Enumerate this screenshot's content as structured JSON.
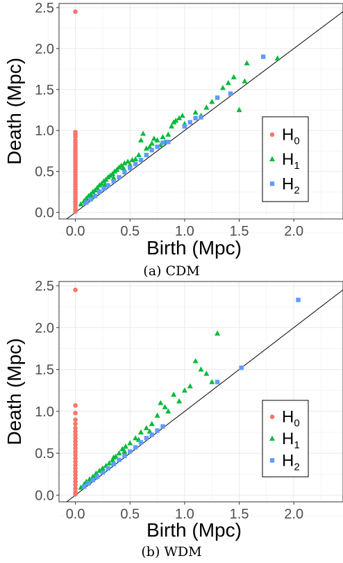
{
  "chart_data": [
    {
      "type": "scatter",
      "caption": "(a) CDM",
      "xlabel": "Birth (Mpc)",
      "ylabel": "Death (Mpc)",
      "xlim": [
        -0.15,
        2.45
      ],
      "ylim": [
        -0.08,
        2.55
      ],
      "xticks": [
        "0.0",
        "0.5",
        "1.0",
        "1.5",
        "2.0"
      ],
      "yticks": [
        "0.0",
        "0.5",
        "1.0",
        "1.5",
        "2.0",
        "2.5"
      ],
      "grid": true,
      "diagonal": true,
      "legend": {
        "placement": "right",
        "entries": [
          {
            "base": "H",
            "sub": "0",
            "color": "#f8766d",
            "shape": "circle"
          },
          {
            "base": "H",
            "sub": "1",
            "color": "#00ba38",
            "shape": "triangle"
          },
          {
            "base": "H",
            "sub": "2",
            "color": "#619cff",
            "shape": "square"
          }
        ]
      },
      "series": [
        {
          "color": "#f8766d",
          "shape": "circle",
          "points": [
            [
              0,
              2.45
            ],
            [
              0,
              0.98
            ],
            [
              0,
              0.95
            ],
            [
              0,
              0.92
            ],
            [
              0,
              0.88
            ],
            [
              0,
              0.85
            ],
            [
              0,
              0.82
            ],
            [
              0,
              0.79
            ],
            [
              0,
              0.76
            ],
            [
              0,
              0.73
            ],
            [
              0,
              0.7
            ],
            [
              0,
              0.67
            ],
            [
              0,
              0.64
            ],
            [
              0,
              0.61
            ],
            [
              0,
              0.58
            ],
            [
              0,
              0.55
            ],
            [
              0,
              0.52
            ],
            [
              0,
              0.49
            ],
            [
              0,
              0.46
            ],
            [
              0,
              0.43
            ],
            [
              0,
              0.4
            ],
            [
              0,
              0.37
            ],
            [
              0,
              0.34
            ],
            [
              0,
              0.31
            ],
            [
              0,
              0.28
            ],
            [
              0,
              0.25
            ],
            [
              0,
              0.22
            ],
            [
              0,
              0.19
            ],
            [
              0,
              0.16
            ],
            [
              0,
              0.13
            ],
            [
              0,
              0.1
            ],
            [
              0,
              0.07
            ],
            [
              0,
              0.04
            ],
            [
              0,
              0.01
            ]
          ]
        },
        {
          "color": "#00ba38",
          "shape": "triangle",
          "points": [
            [
              0.05,
              0.1
            ],
            [
              0.08,
              0.14
            ],
            [
              0.1,
              0.17
            ],
            [
              0.12,
              0.2
            ],
            [
              0.14,
              0.22
            ],
            [
              0.16,
              0.25
            ],
            [
              0.18,
              0.27
            ],
            [
              0.2,
              0.3
            ],
            [
              0.22,
              0.33
            ],
            [
              0.24,
              0.35
            ],
            [
              0.26,
              0.38
            ],
            [
              0.28,
              0.4
            ],
            [
              0.3,
              0.43
            ],
            [
              0.32,
              0.45
            ],
            [
              0.34,
              0.47
            ],
            [
              0.36,
              0.5
            ],
            [
              0.38,
              0.52
            ],
            [
              0.4,
              0.55
            ],
            [
              0.42,
              0.57
            ],
            [
              0.45,
              0.6
            ],
            [
              0.48,
              0.62
            ],
            [
              0.5,
              0.58
            ],
            [
              0.52,
              0.64
            ],
            [
              0.55,
              0.65
            ],
            [
              0.58,
              0.7
            ],
            [
              0.6,
              0.88
            ],
            [
              0.62,
              0.96
            ],
            [
              0.65,
              0.78
            ],
            [
              0.68,
              0.8
            ],
            [
              0.7,
              0.84
            ],
            [
              0.72,
              0.9
            ],
            [
              0.75,
              0.88
            ],
            [
              0.78,
              0.82
            ],
            [
              0.8,
              0.92
            ],
            [
              0.82,
              0.86
            ],
            [
              0.85,
              0.95
            ],
            [
              0.88,
              1.05
            ],
            [
              0.9,
              1.1
            ],
            [
              0.92,
              1.12
            ],
            [
              0.95,
              1.15
            ],
            [
              0.98,
              1.18
            ],
            [
              1.0,
              1.08
            ],
            [
              1.1,
              1.22
            ],
            [
              1.15,
              1.18
            ],
            [
              1.2,
              1.28
            ],
            [
              1.25,
              1.35
            ],
            [
              1.35,
              1.52
            ],
            [
              1.4,
              1.58
            ],
            [
              1.45,
              1.65
            ],
            [
              1.5,
              1.25
            ],
            [
              1.55,
              1.6
            ],
            [
              1.57,
              1.82
            ],
            [
              1.85,
              1.88
            ],
            [
              0.44,
              0.54
            ],
            [
              0.35,
              0.42
            ],
            [
              0.27,
              0.33
            ],
            [
              0.15,
              0.19
            ],
            [
              0.09,
              0.12
            ]
          ]
        },
        {
          "color": "#619cff",
          "shape": "square",
          "points": [
            [
              0.1,
              0.12
            ],
            [
              0.14,
              0.16
            ],
            [
              0.18,
              0.2
            ],
            [
              0.22,
              0.25
            ],
            [
              0.26,
              0.29
            ],
            [
              0.3,
              0.33
            ],
            [
              0.35,
              0.38
            ],
            [
              0.4,
              0.43
            ],
            [
              0.45,
              0.49
            ],
            [
              0.5,
              0.54
            ],
            [
              0.55,
              0.59
            ],
            [
              0.6,
              0.64
            ],
            [
              0.65,
              0.7
            ],
            [
              0.7,
              0.76
            ],
            [
              0.75,
              0.8
            ],
            [
              0.8,
              0.85
            ],
            [
              0.85,
              0.86
            ],
            [
              1.0,
              1.05
            ],
            [
              1.05,
              1.1
            ],
            [
              1.1,
              1.15
            ],
            [
              1.15,
              1.16
            ],
            [
              1.3,
              1.4
            ],
            [
              1.42,
              1.45
            ],
            [
              1.72,
              1.9
            ]
          ]
        }
      ]
    },
    {
      "type": "scatter",
      "caption": "(b) WDM",
      "xlabel": "Birth (Mpc)",
      "ylabel": "Death (Mpc)",
      "xlim": [
        -0.15,
        2.45
      ],
      "ylim": [
        -0.08,
        2.55
      ],
      "xticks": [
        "0.0",
        "0.5",
        "1.0",
        "1.5",
        "2.0"
      ],
      "yticks": [
        "0.0",
        "0.5",
        "1.0",
        "1.5",
        "2.0",
        "2.5"
      ],
      "grid": true,
      "diagonal": true,
      "legend": {
        "placement": "right",
        "entries": [
          {
            "base": "H",
            "sub": "0",
            "color": "#f8766d",
            "shape": "circle"
          },
          {
            "base": "H",
            "sub": "1",
            "color": "#00ba38",
            "shape": "triangle"
          },
          {
            "base": "H",
            "sub": "2",
            "color": "#619cff",
            "shape": "square"
          }
        ]
      },
      "series": [
        {
          "color": "#f8766d",
          "shape": "circle",
          "points": [
            [
              0,
              2.45
            ],
            [
              0,
              1.07
            ],
            [
              0,
              0.98
            ],
            [
              0,
              0.9
            ],
            [
              0,
              0.85
            ],
            [
              0,
              0.8
            ],
            [
              0,
              0.76
            ],
            [
              0,
              0.72
            ],
            [
              0,
              0.68
            ],
            [
              0,
              0.64
            ],
            [
              0,
              0.6
            ],
            [
              0,
              0.56
            ],
            [
              0,
              0.52
            ],
            [
              0,
              0.48
            ],
            [
              0,
              0.44
            ],
            [
              0,
              0.4
            ],
            [
              0,
              0.36
            ],
            [
              0,
              0.32
            ],
            [
              0,
              0.28
            ],
            [
              0,
              0.24
            ],
            [
              0,
              0.2
            ],
            [
              0,
              0.16
            ],
            [
              0,
              0.12
            ],
            [
              0,
              0.08
            ],
            [
              0,
              0.04
            ],
            [
              0,
              0.01
            ]
          ]
        },
        {
          "color": "#00ba38",
          "shape": "triangle",
          "points": [
            [
              0.05,
              0.09
            ],
            [
              0.08,
              0.13
            ],
            [
              0.1,
              0.16
            ],
            [
              0.13,
              0.19
            ],
            [
              0.16,
              0.22
            ],
            [
              0.19,
              0.26
            ],
            [
              0.22,
              0.29
            ],
            [
              0.25,
              0.32
            ],
            [
              0.28,
              0.35
            ],
            [
              0.31,
              0.38
            ],
            [
              0.34,
              0.42
            ],
            [
              0.37,
              0.46
            ],
            [
              0.4,
              0.5
            ],
            [
              0.43,
              0.55
            ],
            [
              0.46,
              0.58
            ],
            [
              0.5,
              0.62
            ],
            [
              0.55,
              0.68
            ],
            [
              0.6,
              0.75
            ],
            [
              0.65,
              0.8
            ],
            [
              0.7,
              0.85
            ],
            [
              0.75,
              0.95
            ],
            [
              0.78,
              1.1
            ],
            [
              0.82,
              1.05
            ],
            [
              0.85,
              1.0
            ],
            [
              0.9,
              1.2
            ],
            [
              0.95,
              1.12
            ],
            [
              1.0,
              1.25
            ],
            [
              1.05,
              1.3
            ],
            [
              1.1,
              1.6
            ],
            [
              1.15,
              1.5
            ],
            [
              1.2,
              1.45
            ],
            [
              1.25,
              1.35
            ],
            [
              1.3,
              1.93
            ],
            [
              0.35,
              0.45
            ],
            [
              0.24,
              0.3
            ],
            [
              0.45,
              0.52
            ],
            [
              0.58,
              0.66
            ],
            [
              0.68,
              0.76
            ],
            [
              0.18,
              0.21
            ],
            [
              0.12,
              0.15
            ]
          ]
        },
        {
          "color": "#619cff",
          "shape": "square",
          "points": [
            [
              0.08,
              0.1
            ],
            [
              0.12,
              0.14
            ],
            [
              0.16,
              0.18
            ],
            [
              0.2,
              0.22
            ],
            [
              0.25,
              0.27
            ],
            [
              0.3,
              0.32
            ],
            [
              0.35,
              0.37
            ],
            [
              0.4,
              0.42
            ],
            [
              0.45,
              0.47
            ],
            [
              0.5,
              0.52
            ],
            [
              0.55,
              0.57
            ],
            [
              0.6,
              0.63
            ],
            [
              0.65,
              0.68
            ],
            [
              0.7,
              0.72
            ],
            [
              0.75,
              0.77
            ],
            [
              0.8,
              0.82
            ],
            [
              1.3,
              1.35
            ],
            [
              1.52,
              1.52
            ],
            [
              2.04,
              2.33
            ]
          ]
        }
      ]
    }
  ]
}
